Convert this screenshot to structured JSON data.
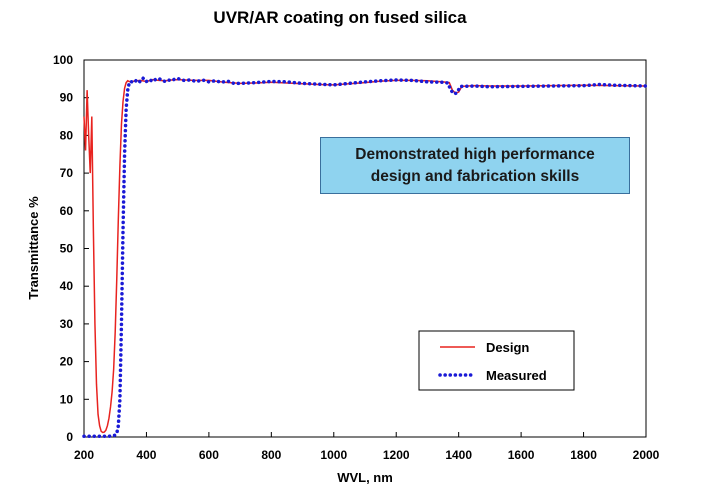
{
  "chart_data": {
    "type": "line",
    "title": "UVR/AR coating on fused silica",
    "xlabel": "WVL, nm",
    "ylabel": "Transmittance %",
    "xlim": [
      200,
      2000
    ],
    "ylim": [
      0,
      100
    ],
    "xticks": [
      200,
      400,
      600,
      800,
      1000,
      1200,
      1400,
      1600,
      1800,
      2000
    ],
    "yticks": [
      0,
      10,
      20,
      30,
      40,
      50,
      60,
      70,
      80,
      90,
      100
    ],
    "grid": false,
    "legend_position": "bottom-right",
    "annotation": [
      "Demonstrated high performance",
      "design and fabrication skills"
    ],
    "series": [
      {
        "name": "Design",
        "style": "solid",
        "color": "#e8231f",
        "x": [
          200,
          205,
          210,
          215,
          220,
          225,
          230,
          235,
          240,
          245,
          250,
          255,
          260,
          265,
          270,
          275,
          280,
          285,
          290,
          295,
          300,
          305,
          310,
          315,
          320,
          325,
          330,
          335,
          340,
          345,
          350,
          360,
          380,
          400,
          420,
          440,
          460,
          480,
          500,
          550,
          600,
          650,
          700,
          750,
          800,
          850,
          900,
          950,
          1000,
          1050,
          1100,
          1150,
          1200,
          1250,
          1300,
          1350,
          1370,
          1380,
          1390,
          1400,
          1410,
          1450,
          1500,
          1600,
          1700,
          1800,
          1900,
          2000
        ],
        "y": [
          85,
          76,
          92,
          80,
          70,
          85,
          55,
          30,
          14,
          6,
          3,
          1.5,
          1.2,
          1.3,
          1.8,
          3,
          5,
          8,
          12,
          18,
          28,
          42,
          58,
          72,
          83,
          89,
          92.5,
          94,
          94.5,
          94.3,
          94.2,
          94.4,
          94.6,
          94.3,
          94.8,
          94.6,
          94.5,
          94.7,
          94.8,
          94.6,
          94.6,
          94.1,
          93.8,
          93.9,
          94.1,
          93.9,
          93.7,
          93.5,
          93.4,
          93.7,
          94,
          94.4,
          94.6,
          94.6,
          94.5,
          94.2,
          94,
          92,
          91.2,
          91.5,
          93,
          93.2,
          93.1,
          93.1,
          93.2,
          93.3,
          93.2,
          93.1
        ]
      },
      {
        "name": "Measured",
        "style": "dotted",
        "color": "#1a1ad6",
        "x": [
          200,
          220,
          240,
          260,
          280,
          290,
          300,
          305,
          310,
          315,
          320,
          325,
          330,
          335,
          340,
          345,
          350,
          360,
          370,
          380,
          390,
          400,
          410,
          420,
          430,
          440,
          450,
          460,
          470,
          480,
          490,
          500,
          510,
          520,
          540,
          560,
          580,
          600,
          620,
          640,
          660,
          680,
          700,
          750,
          800,
          850,
          900,
          950,
          1000,
          1050,
          1100,
          1150,
          1200,
          1250,
          1300,
          1350,
          1365,
          1375,
          1385,
          1395,
          1405,
          1450,
          1500,
          1600,
          1700,
          1800,
          1850,
          1900,
          2000
        ],
        "y": [
          0.2,
          0.2,
          0.2,
          0.2,
          0.2,
          0.3,
          0.5,
          1,
          3,
          10,
          30,
          55,
          75,
          87,
          92,
          94,
          94.3,
          94,
          94.8,
          94.2,
          95.2,
          94.3,
          94.8,
          94.3,
          94.9,
          95.1,
          94.6,
          94.3,
          94.7,
          94.5,
          94.9,
          95.1,
          94.8,
          94.6,
          94.7,
          94.3,
          94.7,
          94.2,
          94.5,
          94.1,
          94.4,
          93.8,
          93.8,
          94,
          94.3,
          94.2,
          93.8,
          93.6,
          93.4,
          93.8,
          94.2,
          94.5,
          94.7,
          94.6,
          94.2,
          94.1,
          93.9,
          92,
          91,
          91.3,
          93,
          93.1,
          92.9,
          93,
          93.1,
          93.2,
          93.5,
          93.3,
          93.1
        ]
      }
    ]
  }
}
